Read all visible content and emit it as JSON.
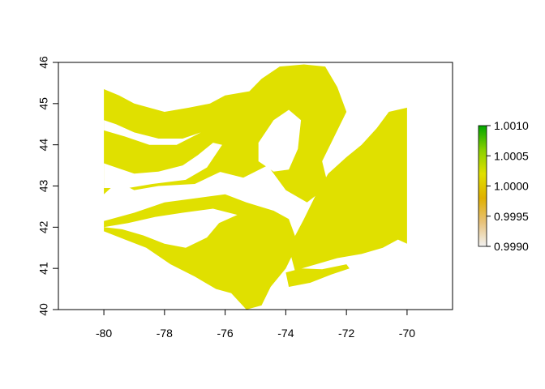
{
  "chart_data": {
    "type": "heatmap",
    "title": "",
    "xlabel": "",
    "ylabel": "",
    "xlim": [
      -81.5,
      -68.5
    ],
    "ylim": [
      40,
      46
    ],
    "x_ticks": [
      "-80",
      "-78",
      "-76",
      "-74",
      "-72",
      "-70"
    ],
    "y_ticks": [
      "40",
      "41",
      "42",
      "43",
      "44",
      "45",
      "46"
    ],
    "raster_extent": {
      "xmin": -80,
      "xmax": -70,
      "ymin": 40,
      "ymax": 46
    },
    "raster_fill_value": 1.0,
    "raster_fill_color": "#e0e000",
    "legend": {
      "placement": "right",
      "min": 0.999,
      "max": 1.001,
      "tick_values": [
        0.999,
        0.9995,
        1.0,
        1.0005,
        1.001
      ],
      "tick_labels": [
        "0.9990",
        "0.9995",
        "1.0000",
        "1.0005",
        "1.0010"
      ],
      "colors": [
        "#f2f2f2",
        "#e8c27a",
        "#e0b000",
        "#e0e000",
        "#88d000",
        "#00a600"
      ]
    }
  }
}
